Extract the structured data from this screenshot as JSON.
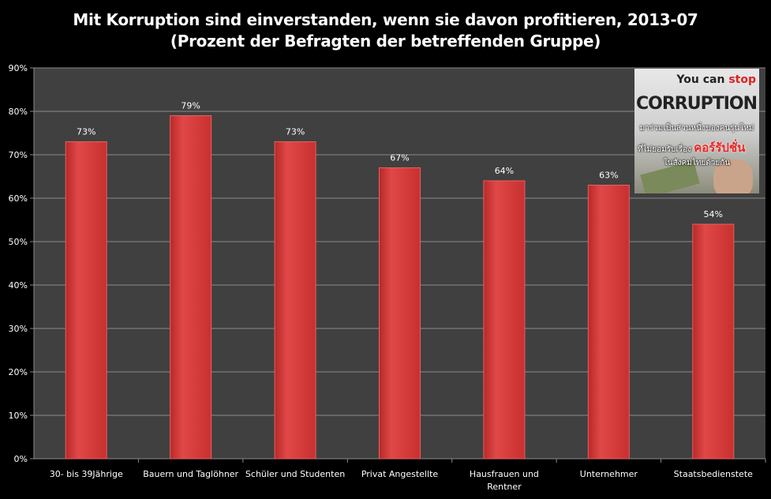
{
  "chart_data": {
    "type": "bar",
    "title": "Mit Korruption sind einverstanden, wenn sie davon profitieren, 2013-07",
    "subtitle": "(Prozent der Befragten der betreffenden Gruppe)",
    "categories": [
      "30- bis 39Jährige",
      "Bauern und Taglöhner",
      "Schüler und Studenten",
      "Privat Angestellte",
      "Hausfrauen und Rentner",
      "Unternehmer",
      "Staatsbedienstete"
    ],
    "values": [
      73,
      79,
      73,
      67,
      64,
      63,
      54
    ],
    "data_labels": [
      "73%",
      "79%",
      "73%",
      "67%",
      "64%",
      "63%",
      "54%"
    ],
    "ylim": [
      0,
      90
    ],
    "yticks": [
      "0%",
      "10%",
      "20%",
      "30%",
      "40%",
      "50%",
      "60%",
      "70%",
      "80%",
      "90%"
    ],
    "xlabel": "",
    "ylabel": "",
    "grid": true,
    "bar_color": "#d94040",
    "plot_bg": "#404040"
  },
  "inset": {
    "line1a": "You can ",
    "line1b": "stop",
    "line2": "CORRUPTION",
    "thai1": "มาร่วมเป็นส่วนหนึ่งของคนรุ่นใหม่",
    "thai2a": "ที่ไม่ยอมรับเรื่อง",
    "thai2b": "คอร์รัปชั่น",
    "thai3": "ในสังคมไทยด้วยกัน"
  }
}
